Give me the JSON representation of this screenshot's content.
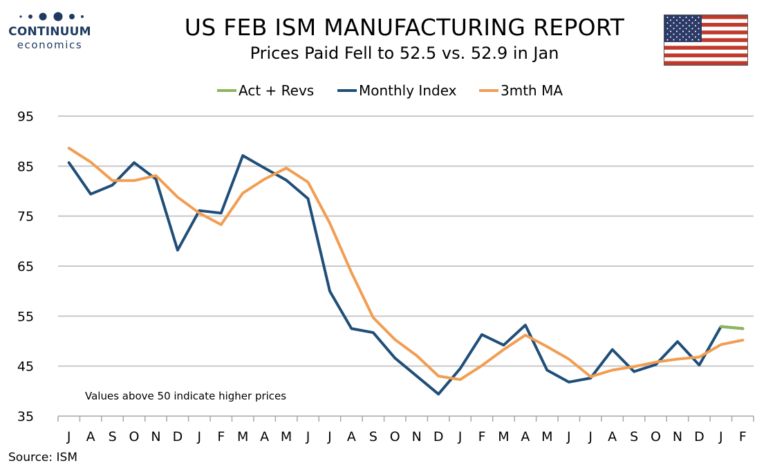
{
  "header": {
    "logo_word": "CONTINUUM",
    "logo_sub": "economics",
    "title": "US FEB ISM MANUFACTURING REPORT",
    "subtitle": "Prices Paid Fell to 52.5 vs. 52.9 in Jan"
  },
  "footer": {
    "source": "Source: ISM"
  },
  "colors": {
    "act_revs": "#8db55c",
    "monthly_index": "#1f4e79",
    "ma3": "#f19e52",
    "grid": "#c8c8c8",
    "logo": "#1e3a5f"
  },
  "chart_data": {
    "type": "line",
    "title": "US FEB ISM MANUFACTURING REPORT",
    "subtitle": "Prices Paid Fell to 52.5 vs. 52.9 in Jan",
    "categories": [
      "J",
      "A",
      "S",
      "O",
      "N",
      "D",
      "J",
      "F",
      "M",
      "A",
      "M",
      "J",
      "J",
      "A",
      "S",
      "O",
      "N",
      "D",
      "J",
      "F",
      "M",
      "A",
      "M",
      "J",
      "J",
      "A",
      "S",
      "O",
      "N",
      "D",
      "J",
      "F"
    ],
    "ylim": [
      35,
      95
    ],
    "yticks": [
      35,
      45,
      55,
      65,
      75,
      85,
      95
    ],
    "grid": true,
    "legend_position": "top-center",
    "annotation": "Values above 50 indicate higher prices",
    "series": [
      {
        "name": "Act + Revs",
        "values": [
          null,
          null,
          null,
          null,
          null,
          null,
          null,
          null,
          null,
          null,
          null,
          null,
          null,
          null,
          null,
          null,
          null,
          null,
          null,
          null,
          null,
          null,
          null,
          null,
          null,
          null,
          null,
          null,
          null,
          null,
          52.9,
          52.5
        ]
      },
      {
        "name": "Monthly Index",
        "values": [
          85.7,
          79.4,
          81.2,
          85.7,
          82.4,
          68.2,
          76.1,
          75.6,
          87.1,
          84.6,
          82.2,
          78.5,
          60.0,
          52.5,
          51.7,
          46.6,
          43.0,
          39.4,
          44.5,
          51.3,
          49.2,
          53.2,
          44.2,
          41.8,
          42.6,
          48.3,
          43.9,
          45.3,
          49.9,
          45.2,
          52.9,
          52.5
        ]
      },
      {
        "name": "3mth MA",
        "values": [
          88.6,
          85.8,
          82.1,
          82.1,
          83.1,
          78.8,
          75.6,
          73.3,
          79.6,
          82.4,
          84.6,
          81.8,
          73.6,
          63.7,
          54.7,
          50.3,
          47.1,
          43.0,
          42.3,
          45.1,
          48.3,
          51.2,
          48.9,
          46.4,
          42.9,
          44.2,
          44.9,
          45.8,
          46.4,
          46.8,
          49.3,
          50.2
        ]
      }
    ]
  }
}
